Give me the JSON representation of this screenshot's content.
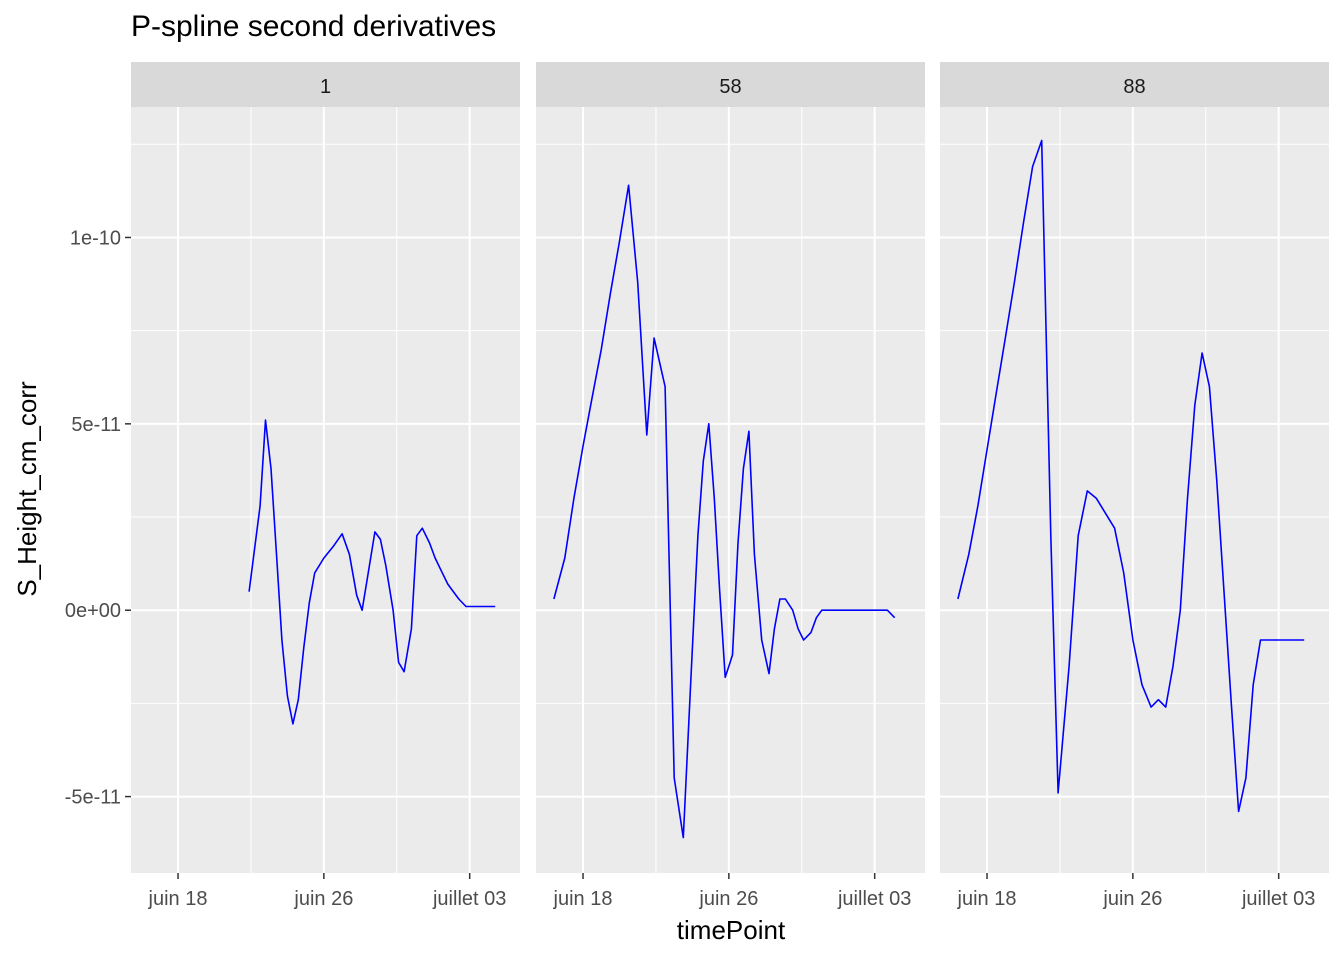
{
  "chart_data": {
    "type": "line",
    "title": "P-spline second derivatives",
    "xlabel": "timePoint",
    "ylabel": "S_Height_cm_corr",
    "x_tick_labels": [
      "juin 18",
      "juin 26",
      "juillet 03"
    ],
    "x_ticks_day": [
      0,
      8,
      16
    ],
    "xlim_day": [
      -2.58,
      18.76
    ],
    "y_tick_labels": [
      "-5e-11",
      "0e+00",
      "5e-11",
      "1e-10"
    ],
    "y_ticks": [
      -5e-11,
      0,
      5e-11,
      1e-10
    ],
    "ylim": [
      -7.05e-11,
      1.35e-10
    ],
    "grid": true,
    "line_color": "#0000ff",
    "panels": [
      {
        "label": "1",
        "x_day": [
          3.9,
          4.5,
          4.8,
          5.1,
          5.4,
          5.7,
          6.0,
          6.3,
          6.6,
          6.9,
          7.2,
          7.5,
          8.0,
          8.5,
          9.0,
          9.4,
          9.8,
          10.1,
          10.4,
          10.8,
          11.1,
          11.4,
          11.8,
          12.1,
          12.4,
          12.8,
          13.1,
          13.4,
          13.8,
          14.1,
          14.4,
          14.8,
          15.1,
          15.4,
          15.8,
          16.2,
          16.6,
          17.0,
          17.4
        ],
        "y": [
          5e-12,
          2.8e-11,
          5.1e-11,
          3.8e-11,
          1.5e-11,
          -8e-12,
          -2.3e-11,
          -3.05e-11,
          -2.4e-11,
          -1e-11,
          2e-12,
          1e-11,
          1.4e-11,
          1.7e-11,
          2.05e-11,
          1.5e-11,
          4e-12,
          0.0,
          9e-12,
          2.1e-11,
          1.9e-11,
          1.2e-11,
          0.0,
          -1.4e-11,
          -1.65e-11,
          -5e-12,
          2e-11,
          2.2e-11,
          1.8e-11,
          1.4e-11,
          1.1e-11,
          7e-12,
          5e-12,
          3e-12,
          1e-12,
          1e-12,
          1e-12,
          1e-12,
          1e-12
        ]
      },
      {
        "label": "58",
        "x_day": [
          -1.6,
          -1.0,
          -0.5,
          0.0,
          0.5,
          1.0,
          1.5,
          2.0,
          2.5,
          3.0,
          3.5,
          3.9,
          4.5,
          5.0,
          5.5,
          5.9,
          6.3,
          6.6,
          6.9,
          7.2,
          7.5,
          7.8,
          8.0,
          8.2,
          8.5,
          8.8,
          9.1,
          9.4,
          9.8,
          10.2,
          10.5,
          10.8,
          11.1,
          11.5,
          11.8,
          12.1,
          12.5,
          12.8,
          13.1,
          13.5,
          13.9,
          14.3,
          14.7,
          15.1,
          15.5,
          15.9,
          16.3,
          16.7,
          17.1
        ],
        "y": [
          3e-12,
          1.4e-11,
          3e-11,
          4.4e-11,
          5.7e-11,
          7e-11,
          8.5e-11,
          9.9e-11,
          1.14e-10,
          8.8e-11,
          4.7e-11,
          7.3e-11,
          6e-11,
          -4.5e-11,
          -6.1e-11,
          -2e-11,
          2e-11,
          4e-11,
          5e-11,
          3e-11,
          5e-12,
          -1.8e-11,
          -1.5e-11,
          -1.2e-11,
          1.8e-11,
          3.8e-11,
          4.8e-11,
          1.5e-11,
          -8e-12,
          -1.7e-11,
          -5e-12,
          3e-12,
          3e-12,
          0.0,
          -5e-12,
          -8e-12,
          -6e-12,
          -2e-12,
          0.0,
          0.0,
          0.0,
          0.0,
          0.0,
          0.0,
          0.0,
          0.0,
          0.0,
          0.0,
          -2e-12
        ]
      },
      {
        "label": "88",
        "x_day": [
          -1.6,
          -1.0,
          -0.5,
          0.0,
          0.5,
          1.0,
          1.5,
          2.0,
          2.5,
          3.0,
          3.5,
          3.9,
          4.5,
          5.0,
          5.5,
          6.0,
          6.5,
          7.0,
          7.5,
          8.0,
          8.5,
          9.0,
          9.4,
          9.8,
          10.2,
          10.6,
          11.0,
          11.4,
          11.8,
          12.2,
          12.6,
          13.0,
          13.4,
          13.8,
          14.2,
          14.6,
          15.0,
          15.4,
          15.8,
          16.2,
          16.6,
          17.0,
          17.4
        ],
        "y": [
          3e-12,
          1.5e-11,
          2.8e-11,
          4.3e-11,
          5.8e-11,
          7.3e-11,
          8.8e-11,
          1.04e-10,
          1.19e-10,
          1.26e-10,
          2e-11,
          -4.9e-11,
          -1.5e-11,
          2e-11,
          3.2e-11,
          3e-11,
          2.6e-11,
          2.2e-11,
          1e-11,
          -8e-12,
          -2e-11,
          -2.6e-11,
          -2.4e-11,
          -2.6e-11,
          -1.5e-11,
          0.0,
          3e-11,
          5.5e-11,
          6.9e-11,
          6e-11,
          3.5e-11,
          5e-12,
          -2.5e-11,
          -5.4e-11,
          -4.5e-11,
          -2e-11,
          -8e-12,
          -8e-12,
          -8e-12,
          -8e-12,
          -8e-12,
          -8e-12,
          -8e-12
        ]
      }
    ]
  }
}
